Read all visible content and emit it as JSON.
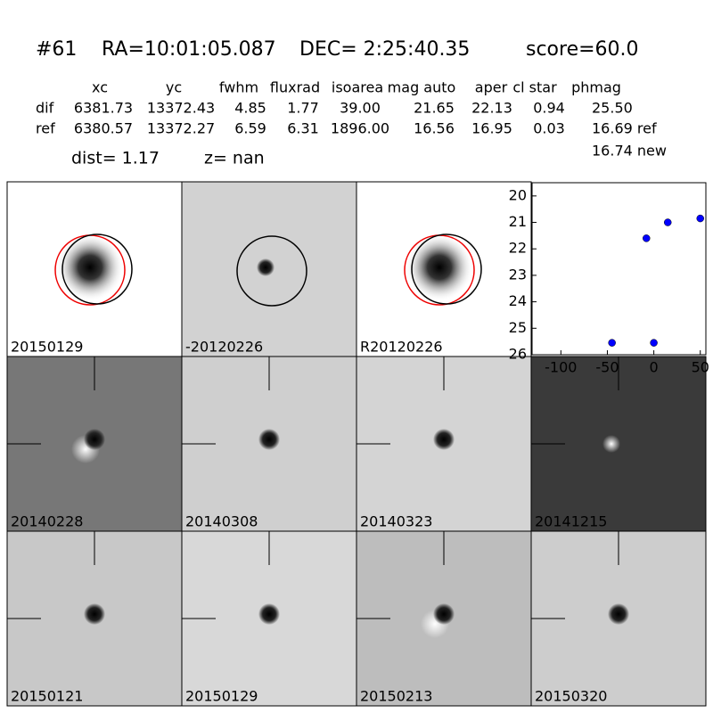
{
  "header": {
    "id": "#61",
    "ra": "RA=10:01:05.087",
    "dec": "DEC= 2:25:40.35",
    "score": "score=60.0"
  },
  "table": {
    "columns": [
      "xc",
      "yc",
      "fwhm",
      "fluxrad",
      "isoarea",
      "mag auto",
      "aper",
      "cl star",
      "phmag"
    ],
    "rows": [
      {
        "label": "dif",
        "cells": [
          "6381.73",
          "13372.43",
          "4.85",
          "1.77",
          "39.00",
          "21.65",
          "22.13",
          "0.94",
          "25.50"
        ]
      },
      {
        "label": "ref",
        "cells": [
          "6380.57",
          "13372.27",
          "6.59",
          "6.31",
          "1896.00",
          "16.56",
          "16.95",
          "0.03",
          "16.69 ref"
        ]
      }
    ],
    "extra": "16.74 new"
  },
  "dist": "dist=  1.17",
  "z": "z=   nan",
  "panels": [
    "20150129",
    "-20120226",
    "R20120226",
    null,
    "20140228",
    "20140308",
    "20140323",
    "20141215",
    "20150121",
    "20150129",
    "20150213",
    "20150320"
  ],
  "chart_data": {
    "type": "scatter",
    "x": [
      -45,
      -8,
      0,
      15,
      50
    ],
    "values": [
      25.55,
      21.6,
      25.55,
      21.0,
      20.85
    ],
    "color": "#0000ff",
    "xlim": [
      -131,
      56
    ],
    "ylim": [
      26,
      19.5
    ],
    "xticks": [
      -100,
      -50,
      0,
      50
    ],
    "yticks": [
      20,
      21,
      22,
      23,
      24,
      25,
      26
    ]
  }
}
